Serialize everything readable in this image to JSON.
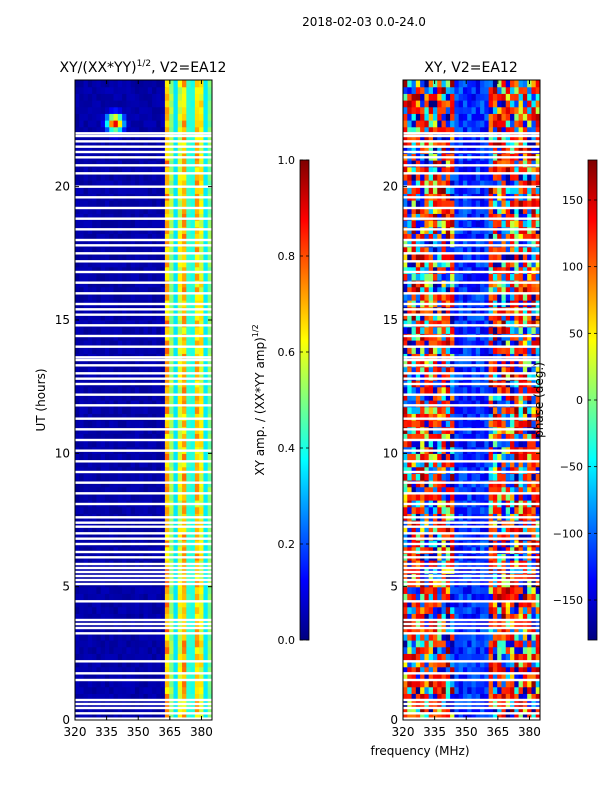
{
  "suptitle": "2018-02-03 0.0-24.0",
  "shared_xlabel": "frequency (MHz)",
  "colors": {
    "jet": [
      "#00007f",
      "#0000ff",
      "#007fff",
      "#00ffff",
      "#7fff7f",
      "#ffff00",
      "#ff7f00",
      "#ff0000",
      "#7f0000"
    ],
    "gap": "#ffffff",
    "axes": "#000000"
  },
  "chart_data": [
    {
      "type": "heatmap",
      "title_main": "XY/(XX*YY)",
      "title_sup": "1/2",
      "title_rest": ", V2=EA12",
      "xlabel": "",
      "ylabel": "UT (hours)",
      "xlim": [
        320,
        385
      ],
      "ylim": [
        0,
        24
      ],
      "xticks": [
        320,
        335,
        350,
        365,
        380
      ],
      "xtick_labels": [
        "320",
        "335",
        "350",
        "365",
        "380"
      ],
      "yticks": [
        0,
        5,
        10,
        15,
        20
      ],
      "ytick_labels": [
        "0",
        "5",
        "10",
        "15",
        "20"
      ],
      "colorbar": {
        "label_main": "XY amp. / (XX*YY amp)",
        "label_sup": "1/2",
        "vmin": 0.0,
        "vmax": 1.0,
        "ticks": [
          0.0,
          0.2,
          0.4,
          0.6,
          0.8,
          1.0
        ],
        "tick_labels": [
          "0.0",
          "0.2",
          "0.4",
          "0.6",
          "0.8",
          "1.0"
        ]
      },
      "value_description": "Normalized amplitude near 0 below ~362 MHz, 0.3-0.9 in vertical stripes between ~362 and 385 MHz, a bright spot near 339 MHz at ~22.4 h",
      "gaps_hours": [
        0.05,
        0.25,
        0.45,
        0.6,
        0.75,
        1.5,
        1.75,
        2.2,
        3.25,
        3.45,
        3.6,
        3.75,
        4.45,
        5.1,
        5.25,
        5.4,
        5.55,
        5.7,
        5.85,
        6.1,
        6.3,
        6.6,
        6.8,
        7.0,
        7.25,
        7.4,
        7.6,
        8.1,
        8.5,
        8.9,
        9.3,
        9.7,
        10.1,
        10.5,
        10.9,
        11.3,
        11.8,
        12.2,
        12.6,
        12.8,
        13.0,
        13.3,
        13.5,
        13.6,
        14.0,
        14.4,
        14.8,
        15.2,
        15.4,
        15.6,
        16.0,
        16.4,
        16.8,
        17.2,
        17.5,
        17.8,
        18.0,
        18.4,
        18.8,
        19.2,
        19.6,
        20.0,
        20.5,
        20.8,
        21.1,
        21.3,
        21.5,
        21.7,
        21.9,
        22.0
      ]
    },
    {
      "type": "heatmap",
      "title": "XY, V2=EA12",
      "xlabel": "frequency (MHz)",
      "ylabel": "",
      "xlim": [
        320,
        385
      ],
      "ylim": [
        0,
        24
      ],
      "xticks": [
        320,
        335,
        350,
        365,
        380
      ],
      "xtick_labels": [
        "320",
        "335",
        "350",
        "365",
        "380"
      ],
      "yticks": [
        0,
        5,
        10,
        15,
        20
      ],
      "ytick_labels": [
        "0",
        "5",
        "10",
        "15",
        "20"
      ],
      "colorbar": {
        "label": "phase (deg.)",
        "vmin": -180,
        "vmax": 180,
        "ticks": [
          -150,
          -100,
          -50,
          0,
          50,
          100,
          150
        ],
        "tick_labels": [
          "−150",
          "−100",
          "−50",
          "0",
          "50",
          "100",
          "150"
        ]
      },
      "value_description": "Noisy phase in degrees spanning -180 to 180 over all frequencies and hours, with a blue (about -120 deg) band near 345-360 MHz",
      "gaps_hours": [
        0.05,
        0.25,
        0.45,
        0.6,
        0.75,
        1.5,
        1.75,
        2.2,
        3.25,
        3.45,
        3.6,
        3.75,
        4.45,
        5.1,
        5.25,
        5.4,
        5.55,
        5.7,
        5.85,
        6.1,
        6.3,
        6.6,
        6.8,
        7.0,
        7.25,
        7.4,
        7.6,
        8.1,
        8.5,
        8.9,
        9.3,
        9.7,
        10.1,
        10.5,
        10.9,
        11.3,
        11.8,
        12.2,
        12.6,
        12.8,
        13.0,
        13.3,
        13.5,
        13.6,
        14.0,
        14.4,
        14.8,
        15.2,
        15.4,
        15.6,
        16.0,
        16.4,
        16.8,
        17.2,
        17.5,
        17.8,
        18.0,
        18.4,
        18.8,
        19.2,
        19.6,
        20.0,
        20.5,
        20.8,
        21.1,
        21.3,
        21.5,
        21.7,
        21.9,
        22.0
      ]
    }
  ]
}
